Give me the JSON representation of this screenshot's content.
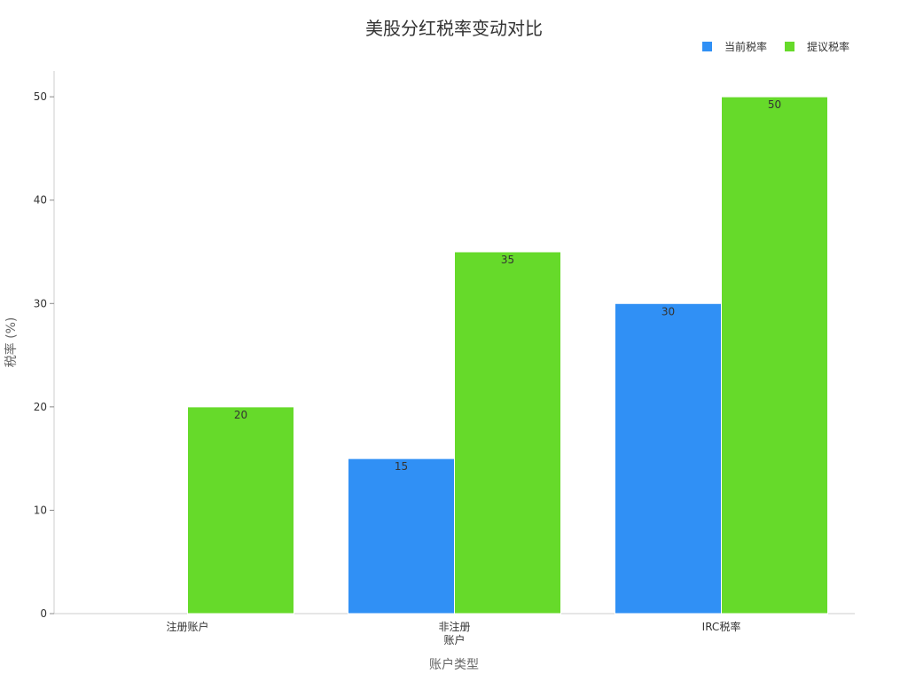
{
  "chart_data": {
    "type": "bar",
    "title": "美股分红税率变动对比",
    "xlabel": "账户类型",
    "ylabel": "税率 (%)",
    "categories": [
      [
        "注册账户"
      ],
      [
        "非注册",
        "账户"
      ],
      [
        "IRC税率"
      ]
    ],
    "series": [
      {
        "name": "当前税率",
        "color": "#3090f5",
        "values": [
          0,
          15,
          30
        ]
      },
      {
        "name": "提议税率",
        "color": "#66da2a",
        "values": [
          20,
          35,
          50
        ]
      }
    ],
    "ylim": [
      0,
      52.5
    ],
    "yticks": [
      0,
      10,
      20,
      30,
      40,
      50
    ],
    "legend": "top-right",
    "grid": false
  }
}
